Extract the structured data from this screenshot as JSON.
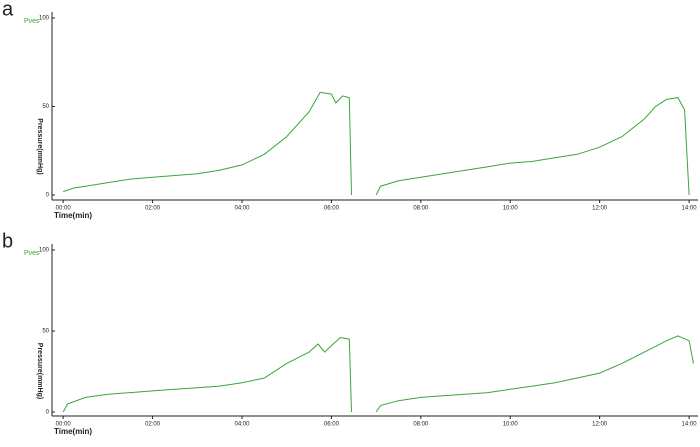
{
  "chart_data": [
    {
      "type": "line",
      "panel_label": "a",
      "y_label": "Pressure(mmHg)",
      "x_label": "Time(min)",
      "x": [
        0,
        0.25,
        0.5,
        1,
        1.5,
        2,
        2.5,
        3,
        3.5,
        4,
        4.5,
        5,
        5.5,
        5.75,
        6,
        6.1,
        6.25,
        6.4,
        6.45,
        6.7,
        7.0,
        7.1,
        7.5,
        8,
        8.5,
        9,
        9.5,
        10,
        10.5,
        11,
        11.5,
        12,
        12.5,
        13,
        13.25,
        13.5,
        13.75,
        13.9,
        14.0
      ],
      "series": [
        {
          "name": "Pves",
          "color": "#3aa53a",
          "values": [
            2,
            4,
            5,
            7,
            9,
            10,
            11,
            12,
            14,
            17,
            23,
            33,
            47,
            58,
            57,
            52,
            56,
            55,
            0,
            null,
            0,
            5,
            8,
            10,
            12,
            14,
            16,
            18,
            19,
            21,
            23,
            27,
            33,
            43,
            50,
            54,
            55,
            48,
            0
          ]
        }
      ],
      "xlim": [
        -0.25,
        14.2
      ],
      "ylim": [
        0,
        100
      ],
      "yticks": [
        0,
        50,
        100
      ],
      "xticks": [
        {
          "value": 0,
          "label": "00:00"
        },
        {
          "value": 2,
          "label": "02:00"
        },
        {
          "value": 4,
          "label": "04:00"
        },
        {
          "value": 6,
          "label": "06:00"
        },
        {
          "value": 8,
          "label": "08:00"
        },
        {
          "value": 10,
          "label": "10:00"
        },
        {
          "value": 12,
          "label": "12:00"
        },
        {
          "value": 14,
          "label": "14:00"
        }
      ]
    },
    {
      "type": "line",
      "panel_label": "b",
      "y_label": "Pressure(mmHg)",
      "x_label": "Time(min)",
      "x": [
        0,
        0.1,
        0.5,
        1,
        1.5,
        2,
        2.5,
        3,
        3.5,
        4,
        4.5,
        5,
        5.5,
        5.7,
        5.85,
        6,
        6.2,
        6.4,
        6.45,
        6.7,
        7.0,
        7.1,
        7.5,
        8,
        8.5,
        9,
        9.5,
        10,
        10.5,
        11,
        11.5,
        12,
        12.5,
        13,
        13.5,
        13.75,
        14,
        14.1
      ],
      "series": [
        {
          "name": "Pves",
          "color": "#3aa53a",
          "values": [
            0,
            5,
            9,
            11,
            12,
            13,
            14,
            15,
            16,
            18,
            21,
            30,
            37,
            42,
            37,
            41,
            46,
            45,
            0,
            null,
            0,
            4,
            7,
            9,
            10,
            11,
            12,
            14,
            16,
            18,
            21,
            24,
            30,
            37,
            44,
            47,
            44,
            30
          ]
        }
      ],
      "xlim": [
        -0.25,
        14.2
      ],
      "ylim": [
        0,
        100
      ],
      "yticks": [
        0,
        50,
        100
      ],
      "xticks": [
        {
          "value": 0,
          "label": "00:00"
        },
        {
          "value": 2,
          "label": "02:00"
        },
        {
          "value": 4,
          "label": "04:00"
        },
        {
          "value": 6,
          "label": "06:00"
        },
        {
          "value": 8,
          "label": "08:00"
        },
        {
          "value": 10,
          "label": "10:00"
        },
        {
          "value": 12,
          "label": "12:00"
        },
        {
          "value": 14,
          "label": "14:00"
        }
      ]
    }
  ]
}
